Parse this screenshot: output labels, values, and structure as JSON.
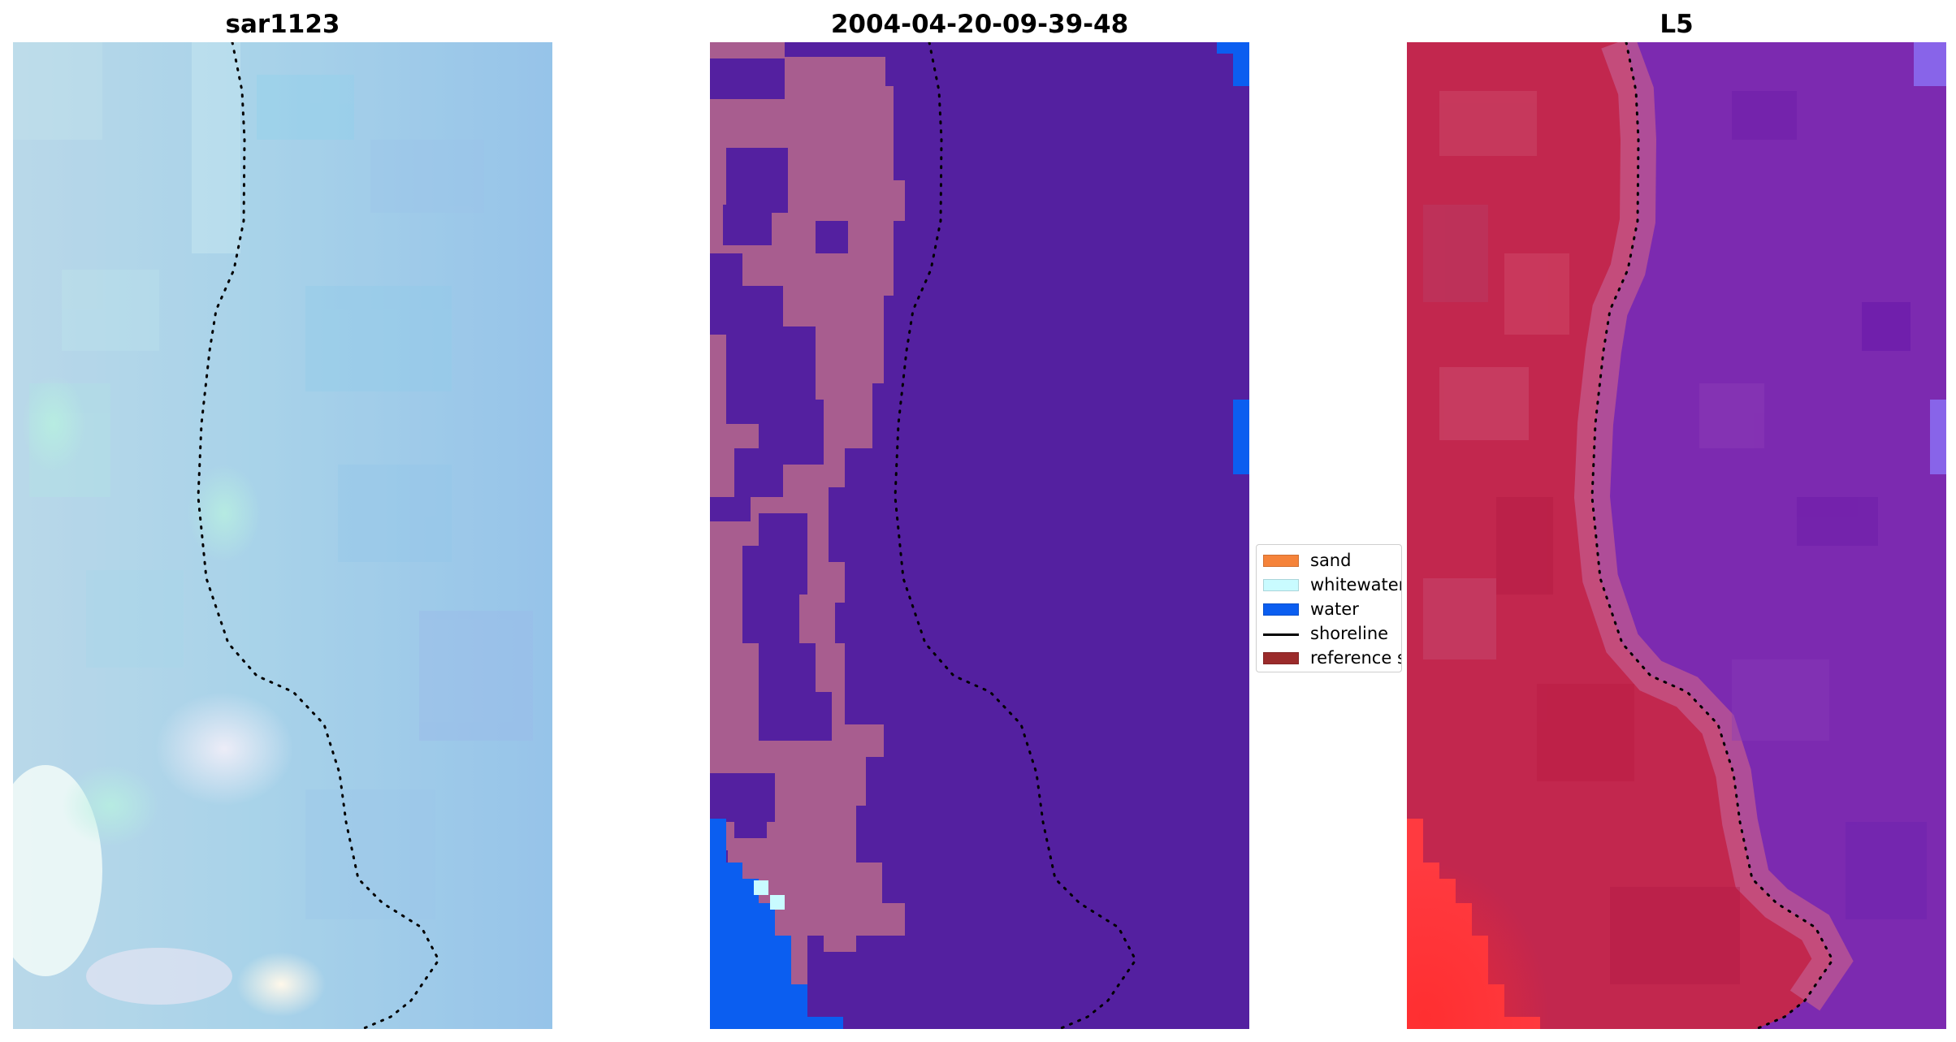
{
  "panels": [
    {
      "title": "sar1123"
    },
    {
      "title": "2004-04-20-09-39-48"
    },
    {
      "title": "L5"
    }
  ],
  "legend": {
    "items": [
      {
        "label": "sand",
        "color": "#f5833a"
      },
      {
        "label": "whitewater",
        "color": "#c9fbff"
      },
      {
        "label": "water",
        "color": "#0b5ef0"
      },
      {
        "label": "shoreline",
        "color": "#000000"
      },
      {
        "label": "reference shoreline buffer",
        "color": "#9b2b2b"
      }
    ]
  },
  "colors": {
    "sar_base": "#9ed2e8",
    "classified_background": "#5420a0",
    "classified_sand": "#a85d8f",
    "classified_water": "#0b5ef0",
    "classified_whitewater": "#c9fbff",
    "l5_land": "#c2274e",
    "l5_sea": "#7c2ab0"
  }
}
